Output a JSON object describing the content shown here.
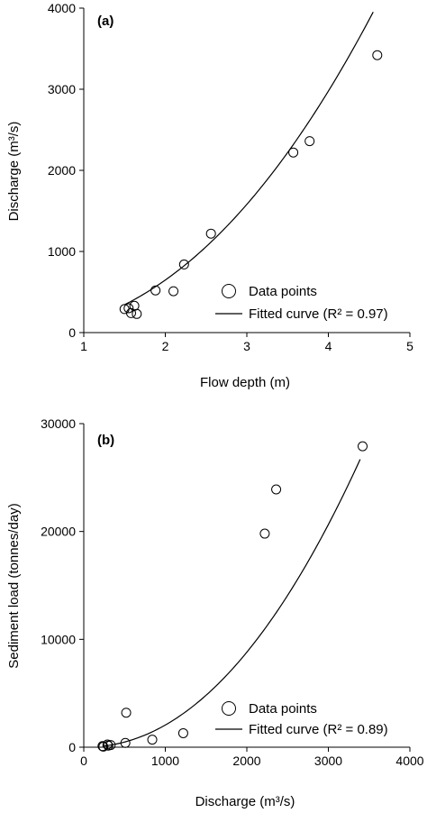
{
  "chart_data": [
    {
      "type": "scatter",
      "panel_label": "(a)",
      "xlabel": "Flow depth (m)",
      "ylabel": "Discharge (m³/s)",
      "xlim": [
        1,
        5
      ],
      "ylim": [
        0,
        4000
      ],
      "xticks": [
        "1",
        "2",
        "3",
        "4",
        "5"
      ],
      "yticks": [
        "0",
        "1000",
        "2000",
        "3000",
        "4000"
      ],
      "xtick_values": [
        1,
        2,
        3,
        4,
        5
      ],
      "ytick_values": [
        0,
        1000,
        2000,
        3000,
        4000
      ],
      "grid": false,
      "legend_position": "bottom-right",
      "series": [
        {
          "name": "Data points",
          "kind": "scatter",
          "color": "#000000",
          "x": [
            1.5,
            1.55,
            1.58,
            1.62,
            1.65,
            1.88,
            2.1,
            2.23,
            2.56,
            3.57,
            3.77,
            4.6
          ],
          "y": [
            290,
            300,
            240,
            330,
            230,
            520,
            510,
            840,
            1220,
            2220,
            2360,
            3420
          ]
        },
        {
          "name": "Fitted curve (R² = 0.97)",
          "kind": "line",
          "color": "#000000",
          "curve": {
            "x_start": 1.5,
            "x_end": 4.55,
            "a": 141,
            "b": 2.2
          }
        }
      ]
    },
    {
      "type": "scatter",
      "panel_label": "(b)",
      "xlabel": "Discharge (m³/s)",
      "ylabel": "Sediment load (tonnes/day)",
      "xlim": [
        0,
        4000
      ],
      "ylim": [
        0,
        30000
      ],
      "xticks": [
        "0",
        "1000",
        "2000",
        "3000",
        "4000"
      ],
      "yticks": [
        "0",
        "10000",
        "20000",
        "30000"
      ],
      "xtick_values": [
        0,
        1000,
        2000,
        3000,
        4000
      ],
      "ytick_values": [
        0,
        10000,
        20000,
        30000
      ],
      "grid": false,
      "legend_position": "bottom-right",
      "series": [
        {
          "name": "Data points",
          "kind": "scatter",
          "color": "#000000",
          "x": [
            230,
            240,
            290,
            300,
            330,
            510,
            520,
            840,
            1220,
            2220,
            2360,
            3420
          ],
          "y": [
            100,
            50,
            250,
            150,
            200,
            400,
            3200,
            700,
            1300,
            19800,
            23900,
            27900
          ]
        },
        {
          "name": "Fitted curve (R² = 0.89)",
          "kind": "line",
          "color": "#000000",
          "curve": {
            "x_start": 230,
            "x_end": 3390,
            "a": 0.00103,
            "b": 2.1
          }
        }
      ]
    }
  ]
}
